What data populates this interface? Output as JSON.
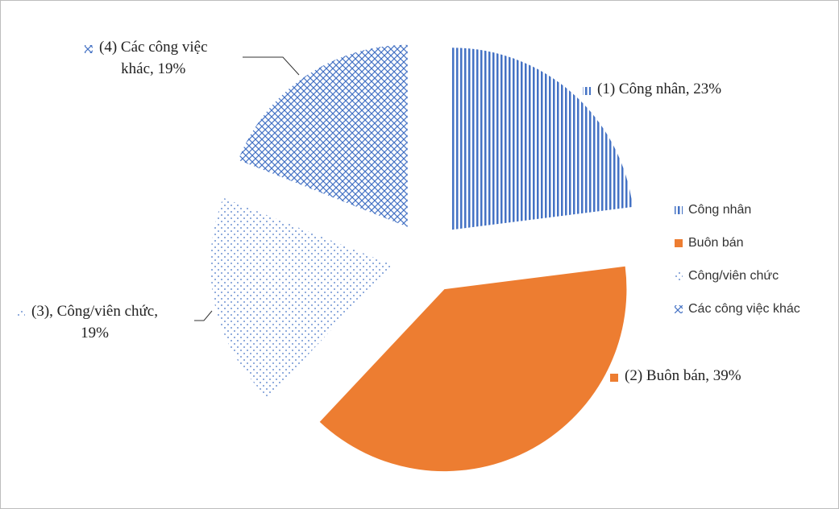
{
  "chart_data": {
    "type": "pie",
    "categories": [
      "Công nhân",
      "Buôn bán",
      "Công/viên chức",
      "Các công việc khác"
    ],
    "values": [
      23,
      39,
      19,
      19
    ],
    "value_labels": [
      "(1) Công nhân, 23%",
      "(2) Buôn bán, 39%",
      "(3), Công/viên chức,\n19%",
      "(4) Các công việc\nkhác, 19%"
    ],
    "colors": [
      "#4472c4",
      "#ed7d31",
      "#4472c4",
      "#4472c4"
    ],
    "patterns": [
      "vertical",
      "solid",
      "dotted",
      "crosshatch"
    ],
    "legend": "right"
  }
}
